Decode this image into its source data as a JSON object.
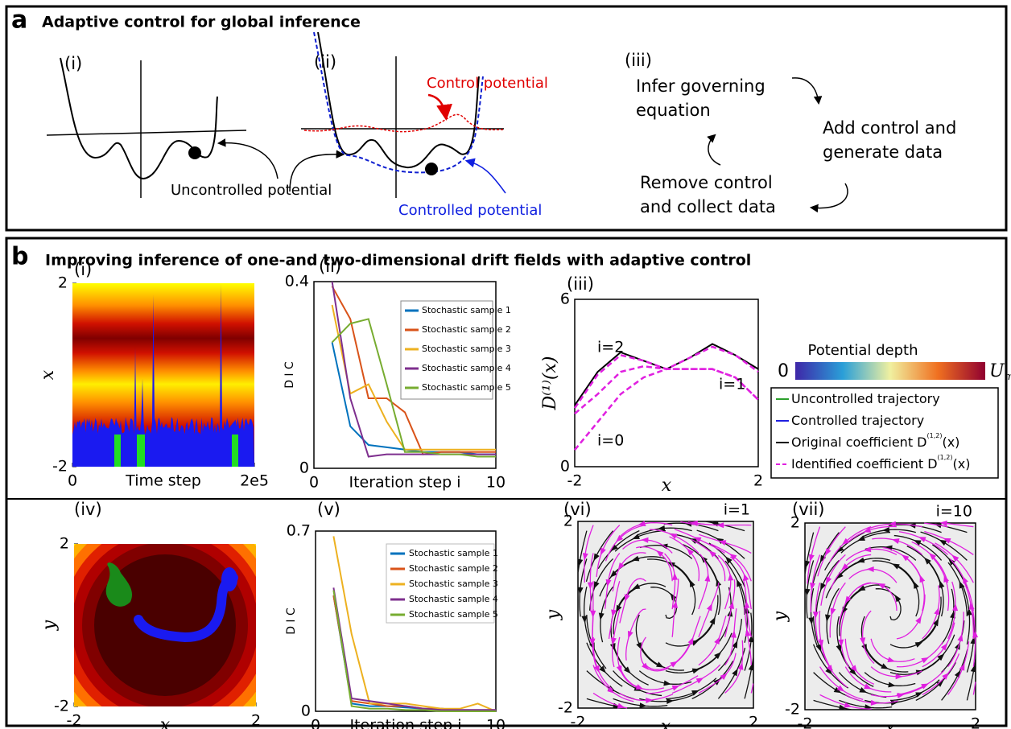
{
  "panel_a": {
    "label": "a",
    "title": "Adaptive control for global inference",
    "sub_i": "(i)",
    "sub_ii": "(ii)",
    "sub_iii": "(iii)",
    "uncontrolled_potential": "Uncontrolled potential",
    "control_potential": "Control potential",
    "controlled_potential": "Controlled potential",
    "cycle": [
      [
        "Infer governing",
        "equation"
      ],
      [
        "Add control and",
        "generate data"
      ],
      [
        "Remove control",
        "and collect data"
      ]
    ]
  },
  "panel_b": {
    "label": "b",
    "title": "Improving inference of one-and two-dimensional drift fields with adaptive control",
    "i": {
      "type": "heatmap",
      "panel_label": "(i)",
      "xlabel": "Time step",
      "ylabel": "x",
      "xlim": [
        0,
        200000
      ],
      "ylim": [
        -2,
        2
      ],
      "xticks": [
        0,
        {
          "value": 200000,
          "label": "2e5"
        }
      ],
      "yticks": [
        -2,
        2
      ]
    },
    "ii": {
      "type": "line",
      "panel_label": "(ii)",
      "xlabel": "Iteration step i",
      "ylabel": "D I C",
      "xlim": [
        0,
        10
      ],
      "ylim": [
        0,
        0.4
      ],
      "xticks": [
        0,
        10
      ],
      "yticks": [
        0,
        0.4
      ],
      "x": [
        1,
        2,
        3,
        4,
        5,
        6,
        7,
        8,
        9,
        10
      ],
      "series": [
        {
          "name": "Stochastic sample 1",
          "color": "#0072bd",
          "values": [
            0.27,
            0.09,
            0.05,
            0.045,
            0.04,
            0.035,
            0.035,
            0.035,
            0.03,
            0.03
          ]
        },
        {
          "name": "Stochastic sample 2",
          "color": "#d95319",
          "values": [
            0.39,
            0.32,
            0.15,
            0.15,
            0.12,
            0.03,
            0.035,
            0.035,
            0.035,
            0.035
          ]
        },
        {
          "name": "Stochastic sample 3",
          "color": "#edb120",
          "values": [
            0.35,
            0.16,
            0.18,
            0.1,
            0.04,
            0.04,
            0.04,
            0.04,
            0.04,
            0.04
          ]
        },
        {
          "name": "Stochastic sample 4",
          "color": "#7e2f8e",
          "values": [
            0.4,
            0.15,
            0.025,
            0.03,
            0.03,
            0.03,
            0.03,
            0.03,
            0.03,
            0.03
          ]
        },
        {
          "name": "Stochastic sample 5",
          "color": "#77ac30",
          "values": [
            0.27,
            0.31,
            0.32,
            0.18,
            0.035,
            0.035,
            0.03,
            0.03,
            0.025,
            0.025
          ]
        }
      ]
    },
    "iii": {
      "type": "line",
      "panel_label": "(iii)",
      "xlabel": "x",
      "ylabel": "D⁽¹⁾(x)",
      "xlim": [
        -2,
        2
      ],
      "ylim": [
        0,
        6
      ],
      "xticks": [
        -2,
        2
      ],
      "yticks": [
        0,
        6
      ],
      "x": [
        -2,
        -1.5,
        -1,
        -0.5,
        0,
        0.5,
        1,
        1.5,
        2
      ],
      "series": [
        {
          "color": "#000000",
          "dash": false,
          "values": [
            2.2,
            3.4,
            4.1,
            3.8,
            3.5,
            3.9,
            4.4,
            4.0,
            3.5
          ]
        },
        {
          "name": "i=2",
          "color": "#e020e0",
          "dash": true,
          "values": [
            2.1,
            3.3,
            4.0,
            3.8,
            3.5,
            3.9,
            4.3,
            4.0,
            3.4
          ]
        },
        {
          "name": "i=1",
          "color": "#e020e0",
          "dash": true,
          "values": [
            1.9,
            2.6,
            3.4,
            3.6,
            3.5,
            3.5,
            3.5,
            3.2,
            2.4
          ]
        },
        {
          "name": "i=0",
          "color": "#e020e0",
          "dash": true,
          "values": [
            0.6,
            1.6,
            2.6,
            3.2,
            3.5,
            3.5,
            3.5,
            3.2,
            2.4
          ]
        }
      ]
    },
    "legend": {
      "colorbar_title": "Potential depth",
      "colorbar_min": "0",
      "colorbar_max": "U",
      "colorbar_max_sub": "max",
      "entries": [
        {
          "text": "Uncontrolled trajectory",
          "color": "#2ca02c",
          "dash": false
        },
        {
          "text": "Controlled trajectory",
          "color": "#1f1fe0",
          "dash": false
        },
        {
          "text": "Original coefficient D",
          "sup": "(1,2)",
          "tail": "(x)",
          "color": "#000000",
          "dash": false
        },
        {
          "text": "Identified coefficient D",
          "sup": "(1,2)",
          "tail": "(x)",
          "color": "#e020e0",
          "dash": true
        }
      ]
    },
    "iv": {
      "type": "heatmap",
      "panel_label": "(iv)",
      "xlabel": "x",
      "ylabel": "y",
      "xlim": [
        -2,
        2
      ],
      "ylim": [
        -2,
        2
      ],
      "xticks": [
        -2,
        2
      ],
      "yticks": [
        -2,
        2
      ]
    },
    "v": {
      "type": "line",
      "panel_label": "(v)",
      "xlabel": "Iteration step i",
      "ylabel": "D I C",
      "xlim": [
        0,
        10
      ],
      "ylim": [
        0,
        0.7
      ],
      "xticks": [
        0,
        10
      ],
      "yticks": [
        0,
        0.7
      ],
      "x": [
        1,
        2,
        3,
        4,
        5,
        6,
        7,
        8,
        9,
        10
      ],
      "series": [
        {
          "name": "Stochastic sample 1",
          "color": "#0072bd",
          "values": [
            0.45,
            0.03,
            0.02,
            0.02,
            0.015,
            0.01,
            0.01,
            0.005,
            0.005,
            0.005
          ]
        },
        {
          "name": "Stochastic sample 2",
          "color": "#d95319",
          "values": [
            0.45,
            0.04,
            0.03,
            0.02,
            0.02,
            0.01,
            0.01,
            0.005,
            0.005,
            0.005
          ]
        },
        {
          "name": "Stochastic sample 3",
          "color": "#edb120",
          "values": [
            0.68,
            0.3,
            0.03,
            0.03,
            0.03,
            0.02,
            0.01,
            0.01,
            0.03,
            0.0
          ]
        },
        {
          "name": "Stochastic sample 4",
          "color": "#7e2f8e",
          "values": [
            0.48,
            0.05,
            0.04,
            0.03,
            0.02,
            0.01,
            0.005,
            0.005,
            0.005,
            0.005
          ]
        },
        {
          "name": "Stochastic sample 5",
          "color": "#77ac30",
          "values": [
            0.47,
            0.02,
            0.01,
            0.01,
            0.005,
            0.005,
            0.0,
            0.0,
            0.0,
            0.0
          ]
        }
      ]
    },
    "vi": {
      "type": "stream",
      "panel_label": "(vi)",
      "iteration_label": "i=1",
      "xlabel": "x",
      "ylabel": "y",
      "xlim": [
        -2,
        2
      ],
      "ylim": [
        -2,
        2
      ],
      "xticks": [
        -2,
        2
      ],
      "yticks": [
        -2,
        2
      ]
    },
    "vii": {
      "type": "stream",
      "panel_label": "(vii)",
      "iteration_label": "i=10",
      "xlabel": "x",
      "ylabel": "y",
      "xlim": [
        -2,
        2
      ],
      "ylim": [
        -2,
        2
      ],
      "xticks": [
        -2,
        2
      ],
      "yticks": [
        -2,
        2
      ]
    }
  }
}
